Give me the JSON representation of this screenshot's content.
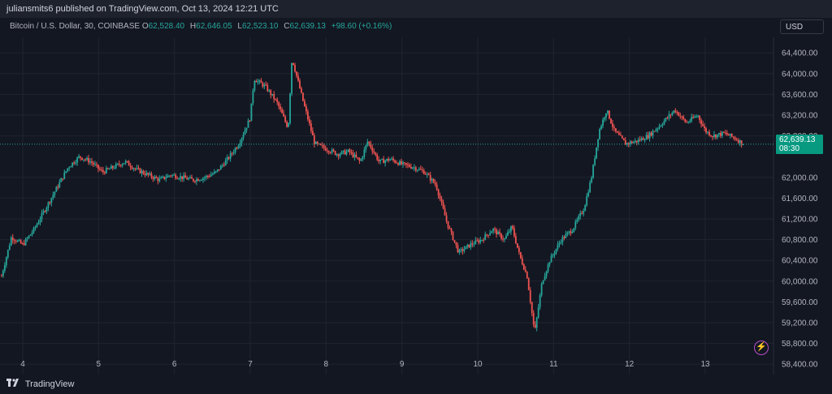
{
  "header": {
    "published_text": "juliansmits6 published on TradingView.com, Oct 13, 2024 12:21 UTC"
  },
  "legend": {
    "symbol": "Bitcoin / U.S. Dollar, 30, COINBASE",
    "open_label": "O",
    "open": "62,528.40",
    "high_label": "H",
    "high": "62,646.05",
    "low_label": "L",
    "low": "62,523.10",
    "close_label": "C",
    "close": "62,639.13",
    "change": "+98.60 (+0.16%)"
  },
  "currency_button": "USD",
  "last_price": {
    "price": "62,639.13",
    "countdown": "08:30"
  },
  "footer": {
    "brand": "TradingView"
  },
  "colors": {
    "up": "#26a69a",
    "down": "#ef5350",
    "background": "#131722",
    "grid": "#1f2430"
  },
  "icons": [
    "tradingview-logo-icon",
    "lightning-icon"
  ],
  "chart_data": {
    "type": "candlestick",
    "x_tick_labels": [
      "4",
      "5",
      "6",
      "7",
      "8",
      "9",
      "10",
      "11",
      "12",
      "13"
    ],
    "y_tick_labels": [
      "64,400.00",
      "64,000.00",
      "63,600.00",
      "63,200.00",
      "62,800.00",
      "62,000.00",
      "61,600.00",
      "61,200.00",
      "60,800.00",
      "60,400.00",
      "60,000.00",
      "59,600.00",
      "59,200.00",
      "58,800.00",
      "58,400.00"
    ],
    "ylim": [
      58200,
      64700
    ],
    "xlim": [
      3.7,
      13.9
    ],
    "last_price": 62639.13,
    "approx_path": [
      [
        3.72,
        60100
      ],
      [
        3.85,
        60850
      ],
      [
        4.0,
        60700
      ],
      [
        4.15,
        61000
      ],
      [
        4.3,
        61400
      ],
      [
        4.45,
        61800
      ],
      [
        4.6,
        62200
      ],
      [
        4.75,
        62400
      ],
      [
        4.9,
        62300
      ],
      [
        5.05,
        62100
      ],
      [
        5.2,
        62200
      ],
      [
        5.35,
        62300
      ],
      [
        5.5,
        62150
      ],
      [
        5.65,
        62050
      ],
      [
        5.8,
        61950
      ],
      [
        5.95,
        62050
      ],
      [
        6.1,
        62000
      ],
      [
        6.25,
        61950
      ],
      [
        6.4,
        62000
      ],
      [
        6.55,
        62100
      ],
      [
        6.7,
        62350
      ],
      [
        6.85,
        62650
      ],
      [
        7.0,
        63150
      ],
      [
        7.05,
        63900
      ],
      [
        7.2,
        63750
      ],
      [
        7.35,
        63450
      ],
      [
        7.5,
        62950
      ],
      [
        7.55,
        64300
      ],
      [
        7.7,
        63450
      ],
      [
        7.85,
        62650
      ],
      [
        8.0,
        62550
      ],
      [
        8.15,
        62450
      ],
      [
        8.3,
        62500
      ],
      [
        8.45,
        62300
      ],
      [
        8.55,
        62700
      ],
      [
        8.7,
        62300
      ],
      [
        8.85,
        62350
      ],
      [
        9.0,
        62250
      ],
      [
        9.15,
        62200
      ],
      [
        9.3,
        62100
      ],
      [
        9.45,
        61850
      ],
      [
        9.6,
        61100
      ],
      [
        9.75,
        60550
      ],
      [
        9.9,
        60700
      ],
      [
        10.05,
        60800
      ],
      [
        10.2,
        61000
      ],
      [
        10.35,
        60800
      ],
      [
        10.45,
        61050
      ],
      [
        10.55,
        60500
      ],
      [
        10.65,
        60100
      ],
      [
        10.75,
        59000
      ],
      [
        10.85,
        60000
      ],
      [
        10.95,
        60400
      ],
      [
        11.1,
        60800
      ],
      [
        11.25,
        61000
      ],
      [
        11.4,
        61400
      ],
      [
        11.5,
        62000
      ],
      [
        11.6,
        62900
      ],
      [
        11.7,
        63300
      ],
      [
        11.8,
        62900
      ],
      [
        11.95,
        62650
      ],
      [
        12.1,
        62700
      ],
      [
        12.25,
        62800
      ],
      [
        12.4,
        63000
      ],
      [
        12.5,
        63150
      ],
      [
        12.6,
        63300
      ],
      [
        12.75,
        63050
      ],
      [
        12.9,
        63200
      ],
      [
        13.0,
        62900
      ],
      [
        13.1,
        62800
      ],
      [
        13.25,
        62850
      ],
      [
        13.4,
        62750
      ],
      [
        13.5,
        62640
      ]
    ]
  }
}
